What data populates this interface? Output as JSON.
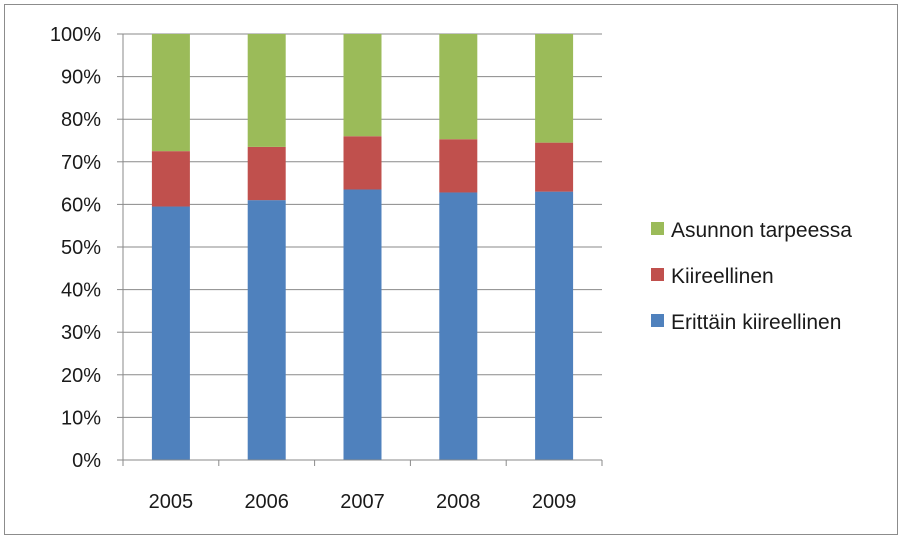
{
  "chart_data": {
    "type": "bar",
    "stacked": true,
    "percent": true,
    "categories": [
      "2005",
      "2006",
      "2007",
      "2008",
      "2009"
    ],
    "series": [
      {
        "name": "Erittäin kiireellinen",
        "color": "#4f81bd",
        "values": [
          59.5,
          61,
          63.5,
          62.8,
          63
        ]
      },
      {
        "name": "Kiireellinen",
        "color": "#c0504d",
        "values": [
          13,
          12.5,
          12.5,
          12.5,
          11.5
        ]
      },
      {
        "name": "Asunnon tarpeessa",
        "color": "#9bbb59",
        "values": [
          27.5,
          26.5,
          24,
          24.7,
          25.5
        ]
      }
    ],
    "ylim": [
      0,
      100
    ],
    "yticks": [
      "0%",
      "10%",
      "20%",
      "30%",
      "40%",
      "50%",
      "60%",
      "70%",
      "80%",
      "90%",
      "100%"
    ],
    "grid": true,
    "legend": {
      "position": "right",
      "order": [
        "Asunnon tarpeessa",
        "Kiireellinen",
        "Erittäin kiireellinen"
      ]
    }
  }
}
